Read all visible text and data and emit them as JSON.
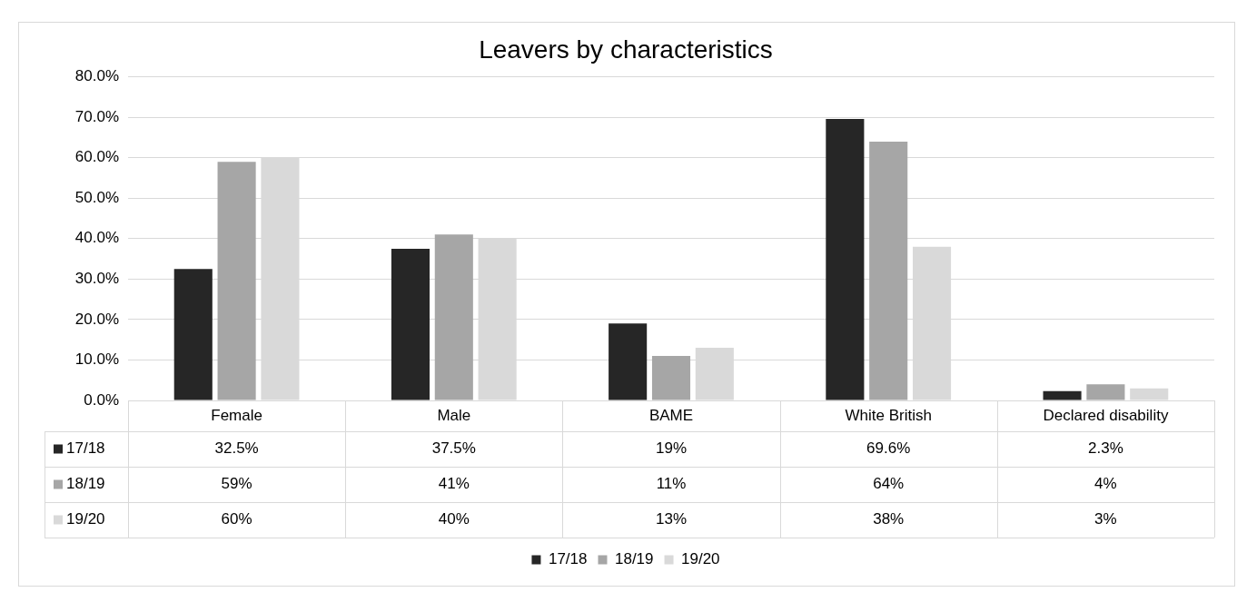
{
  "chart_data": {
    "type": "bar",
    "title": "Leavers by characteristics",
    "categories": [
      "Female",
      "Male",
      "BAME",
      "White British",
      "Declared disability"
    ],
    "series": [
      {
        "name": "17/18",
        "color": "#262626",
        "values": [
          32.5,
          37.5,
          19,
          69.6,
          2.3
        ],
        "value_labels": [
          "32.5%",
          "37.5%",
          "19%",
          "69.6%",
          "2.3%"
        ]
      },
      {
        "name": "18/19",
        "color": "#a6a6a6",
        "values": [
          59,
          41,
          11,
          64,
          4
        ],
        "value_labels": [
          "59%",
          "41%",
          "11%",
          "64%",
          "4%"
        ]
      },
      {
        "name": "19/20",
        "color": "#d9d9d9",
        "values": [
          60,
          40,
          13,
          38,
          3
        ],
        "value_labels": [
          "60%",
          "40%",
          "13%",
          "38%",
          "3%"
        ]
      }
    ],
    "ylim": [
      0,
      80
    ],
    "yticks": [
      {
        "value": 0,
        "label": "0.0%"
      },
      {
        "value": 10,
        "label": "10.0%"
      },
      {
        "value": 20,
        "label": "20.0%"
      },
      {
        "value": 30,
        "label": "30.0%"
      },
      {
        "value": 40,
        "label": "40.0%"
      },
      {
        "value": 50,
        "label": "50.0%"
      },
      {
        "value": 60,
        "label": "60.0%"
      },
      {
        "value": 70,
        "label": "70.0%"
      },
      {
        "value": 80,
        "label": "80.0%"
      }
    ],
    "grid": "y",
    "legend": "bottom"
  }
}
